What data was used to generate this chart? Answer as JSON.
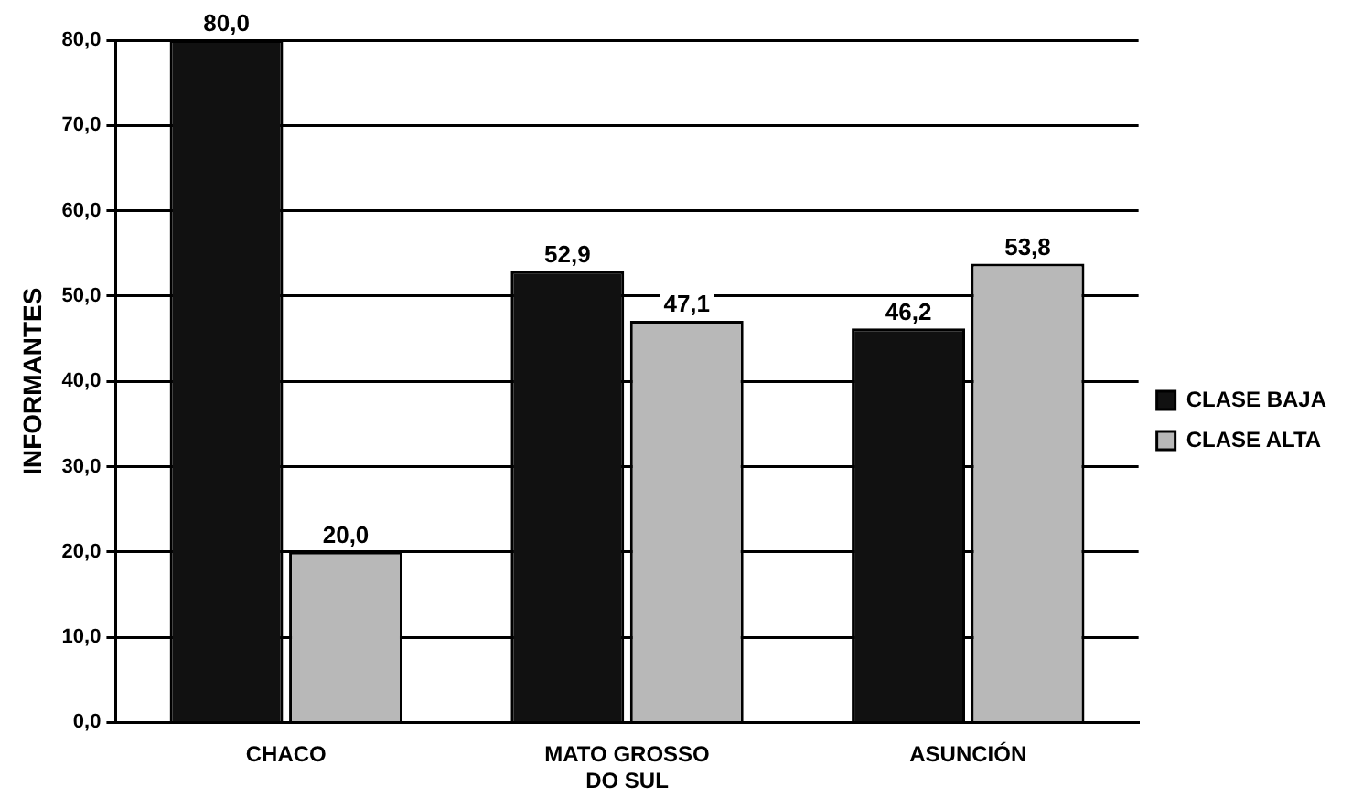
{
  "chart_data": {
    "type": "bar",
    "ylabel": "INFORMANTES",
    "categories": [
      "CHACO",
      "MATO GROSSO\nDO SUL",
      "ASUNCIÓN"
    ],
    "series": [
      {
        "name": "CLASE BAJA",
        "color": "#111111",
        "values": [
          80.0,
          52.9,
          46.2
        ],
        "value_labels": [
          "80,0",
          "52,9",
          "46,2"
        ]
      },
      {
        "name": "CLASE ALTA",
        "color": "#b8b8b8",
        "values": [
          20.0,
          47.1,
          53.8
        ],
        "value_labels": [
          "20,0",
          "47,1",
          "53,8"
        ]
      }
    ],
    "ylim": [
      0,
      80
    ],
    "yticks": [
      {
        "value": 0,
        "label": "0,0"
      },
      {
        "value": 10,
        "label": "10,0"
      },
      {
        "value": 20,
        "label": "20,0"
      },
      {
        "value": 30,
        "label": "30,0"
      },
      {
        "value": 40,
        "label": "40,0"
      },
      {
        "value": 50,
        "label": "50,0"
      },
      {
        "value": 60,
        "label": "60,0"
      },
      {
        "value": 70,
        "label": "70,0"
      },
      {
        "value": 80,
        "label": "80,0"
      }
    ],
    "grid": "y",
    "legend": "right"
  }
}
